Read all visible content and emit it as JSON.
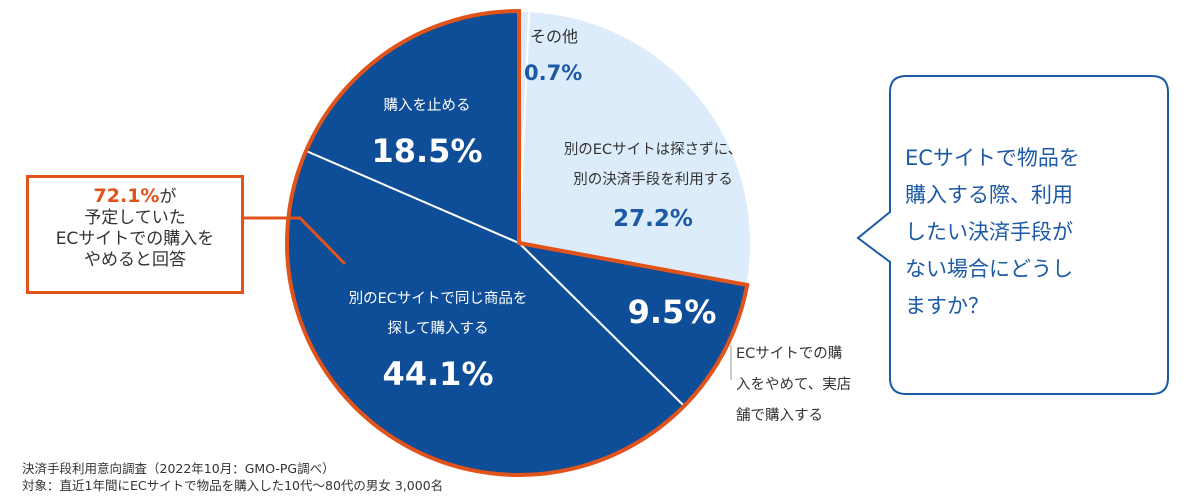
{
  "chart_data": {
    "type": "pie",
    "slices": [
      {
        "label": "その他",
        "value": 0.7
      },
      {
        "label": "別のECサイトは探さずに、別の決済手段を利用する",
        "value": 27.2
      },
      {
        "label": "ECサイトでの購入をやめて、実店舗で購入する",
        "value": 9.5
      },
      {
        "label": "別のECサイトで同じ商品を探して購入する",
        "value": 44.1
      },
      {
        "label": "購入を止める",
        "value": 18.5
      }
    ],
    "value_labels": [
      "0.7%",
      "27.2%",
      "9.5%",
      "44.1%",
      "18.5%"
    ],
    "colors": {
      "dark": "#0e4d98",
      "light": "#dcecfa",
      "outline": "#e0531a"
    }
  },
  "labels": {
    "other": "その他",
    "other_value": "0.7%",
    "alt_payment_line1": "別のECサイトは探さずに、",
    "alt_payment_line2": "別の決済手段を利用する",
    "alt_payment_value": "27.2%",
    "store_value": "9.5%",
    "store_line1": "ECサイトでの購",
    "store_line2": "入をやめて、実店",
    "store_line3": "舗で購入する",
    "other_site_line1": "別のECサイトで同じ商品を",
    "other_site_line2": "探して購入する",
    "other_site_value": "44.1%",
    "stop_line1": "購入を止める",
    "stop_value": "18.5%"
  },
  "callout": {
    "pct": "72.1%",
    "pct_suffix": "が",
    "line2": "予定していた",
    "line3": "ECサイトでの購入を",
    "line4": "やめると回答"
  },
  "question": {
    "lines": [
      "ECサイトで物品を",
      "購入する際、利用",
      "したい決済手段が",
      "ない場合にどうし",
      "ますか？"
    ]
  },
  "source": {
    "line1": "決済手段利用意向調査（2022年10月：GMO-PG調べ）",
    "line2": "対象：直近1年間にECサイトで物品を購入した10代～80代の男女 3,000名"
  }
}
